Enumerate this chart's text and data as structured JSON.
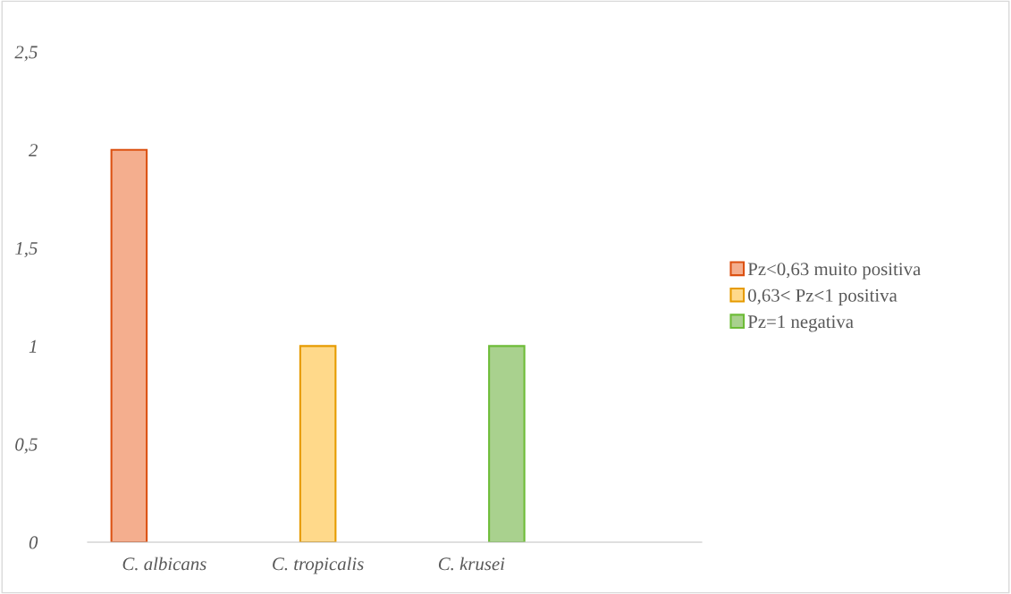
{
  "chart_data": {
    "type": "bar",
    "categories": [
      "C. albicans",
      "C. tropicalis",
      "C. krusei",
      null
    ],
    "series": [
      {
        "name": "Pz<0,63 muito positiva",
        "color": "#f4ae8e",
        "values": [
          2,
          null,
          null,
          null
        ]
      },
      {
        "name": "0,63< Pz<1 positiva",
        "color": "#ffd98a",
        "values": [
          null,
          1,
          null,
          null
        ]
      },
      {
        "name": "Pz=1 negativa",
        "color": "#a9d18e",
        "values": [
          null,
          null,
          1,
          null
        ]
      }
    ],
    "ylim": [
      0,
      2.5
    ],
    "yticks": [
      {
        "value": 0,
        "label": "0"
      },
      {
        "value": 0.5,
        "label": "0,5"
      },
      {
        "value": 1,
        "label": "1"
      },
      {
        "value": 1.5,
        "label": "1,5"
      },
      {
        "value": 2,
        "label": "2"
      },
      {
        "value": 2.5,
        "label": "2,5"
      }
    ],
    "grid": false,
    "legend": "right"
  }
}
